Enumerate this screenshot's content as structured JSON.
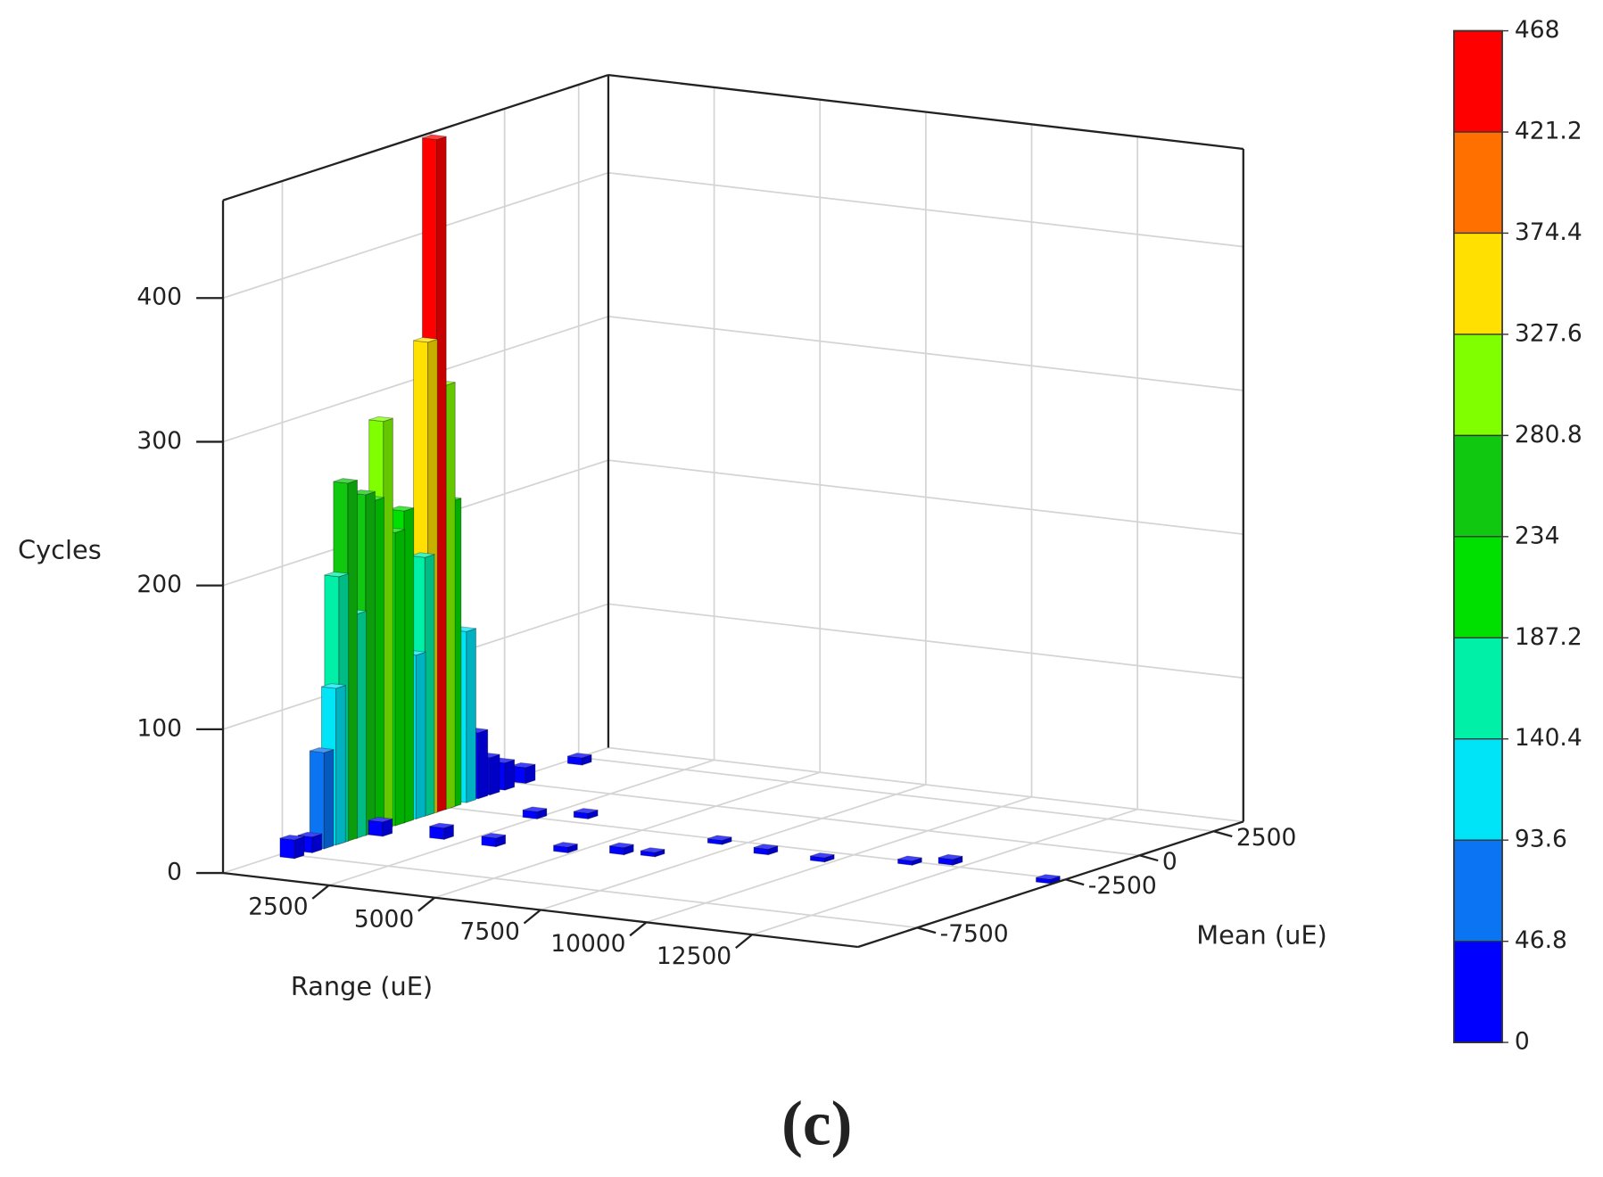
{
  "chart_data": {
    "type": "bar3d",
    "z_label": "Cycles",
    "x_label": "Range (uE)",
    "y_label": "Mean (uE)",
    "caption": "(c)",
    "xlim": [
      0,
      15000
    ],
    "ylim": [
      -9500,
      3500
    ],
    "zlim": [
      0,
      468
    ],
    "xticks": [
      2500,
      5000,
      7500,
      10000,
      12500
    ],
    "yticks": [
      -7500,
      -2500,
      0,
      2500
    ],
    "zticks": [
      0,
      100,
      200,
      300,
      400
    ],
    "grid": true,
    "x": [
      300,
      300,
      300,
      300,
      300,
      300,
      300,
      300,
      300,
      300,
      300,
      300,
      300,
      300,
      300,
      300,
      300,
      300,
      300,
      300,
      300,
      300,
      300,
      300,
      4750,
      5830,
      6990,
      8340,
      9710,
      11400,
      12100,
      14790,
      3170,
      1880,
      650,
      2400,
      3290,
      6480
    ],
    "y": [
      -7600,
      -7000,
      -6600,
      -6200,
      -6100,
      -5800,
      -5500,
      -5200,
      -4900,
      -4600,
      -4200,
      -3900,
      -3500,
      -3200,
      -3100,
      -2800,
      -2500,
      -2300,
      -1800,
      -1400,
      -1000,
      -500,
      200,
      2100,
      -4730,
      -4380,
      -2730,
      -3100,
      -3150,
      -2610,
      -2240,
      -2790,
      -4900,
      -4810,
      -5120,
      -2410,
      -1960,
      -4260
    ],
    "values": [
      13,
      11,
      67,
      109,
      186,
      249,
      156,
      237,
      231,
      284,
      204,
      217,
      114,
      180,
      329,
      468,
      295,
      213,
      119,
      46,
      26,
      19,
      11,
      5,
      4,
      5,
      3,
      4,
      3,
      3,
      4,
      3,
      6,
      8,
      10,
      5,
      4,
      3
    ],
    "colorbar": {
      "ticks": [
        0,
        46.8,
        93.6,
        140.4,
        187.2,
        234,
        280.8,
        327.6,
        374.4,
        421.2,
        468
      ],
      "colors": [
        "#0000ff",
        "#0a74f2",
        "#00e4f8",
        "#00f0a8",
        "#00e000",
        "#10c810",
        "#80ff00",
        "#ffe000",
        "#ff7000",
        "#ff0000"
      ]
    }
  }
}
